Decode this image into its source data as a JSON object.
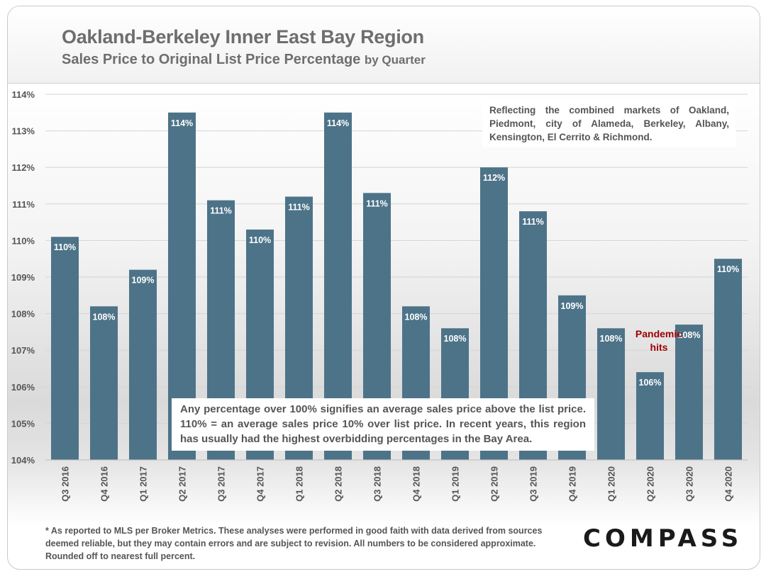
{
  "header": {
    "title": "Oakland-Berkeley Inner East Bay Region",
    "subtitle": "Sales Price to Original List Price Percentage",
    "subtitle_suffix": "by Quarter"
  },
  "annotations": {
    "markets_note": "Reflecting the combined markets of Oakland, Piedmont, city of Alameda, Berkeley, Albany, Kensington, El Cerrito & Richmond.",
    "explanation": "Any percentage over 100% signifies an average sales price above the list price. 110% = an average sales price 10% over list price. In recent years, this region has usually had the highest overbidding percentages in the Bay Area.",
    "pandemic": "Pandemic hits"
  },
  "footer": {
    "disclaimer": "* As reported to MLS per Broker Metrics. These analyses were performed in good faith with data derived from sources deemed reliable, but they may contain errors and are subject to revision. All numbers to  be considered approximate. Rounded off to nearest full percent.",
    "logo": "COMPASS"
  },
  "colors": {
    "bar": "#4d7388",
    "bar_label": "#ffffff",
    "pandemic": "#a00000"
  },
  "chart_data": {
    "type": "bar",
    "categories": [
      "Q3 2016",
      "Q4 2016",
      "Q1 2017",
      "Q2 2017",
      "Q3 2017",
      "Q4 2017",
      "Q1 2018",
      "Q2 2018",
      "Q3 2018",
      "Q4 2018",
      "Q1 2019",
      "Q2 2019",
      "Q3 2019",
      "Q4 2019",
      "Q1 2020",
      "Q2 2020",
      "Q3 2020",
      "Q4 2020"
    ],
    "values": [
      110.1,
      108.2,
      109.2,
      113.5,
      111.1,
      110.3,
      111.2,
      113.5,
      111.3,
      108.2,
      107.6,
      112.0,
      110.8,
      108.5,
      107.6,
      106.4,
      107.7,
      109.5
    ],
    "data_labels": [
      "110%",
      "108%",
      "109%",
      "114%",
      "111%",
      "110%",
      "111%",
      "114%",
      "111%",
      "108%",
      "108%",
      "112%",
      "111%",
      "109%",
      "108%",
      "106%",
      "108%",
      "110%"
    ],
    "ylim": [
      104,
      114
    ],
    "yticks": [
      104,
      105,
      106,
      107,
      108,
      109,
      110,
      111,
      112,
      113,
      114
    ],
    "ytick_labels": [
      "104%",
      "105%",
      "106%",
      "107%",
      "108%",
      "109%",
      "110%",
      "111%",
      "112%",
      "113%",
      "114%"
    ],
    "grid": true,
    "legend": "none",
    "xlabel": "",
    "ylabel": ""
  }
}
